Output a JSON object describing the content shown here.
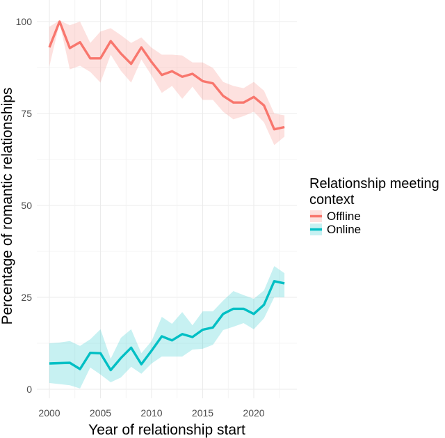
{
  "chart_data": {
    "type": "line",
    "title": "",
    "xlabel": "Year of relationship start",
    "ylabel": "Percentage of romantic relationships",
    "xlim": [
      1999,
      2024
    ],
    "ylim": [
      -1.5,
      105
    ],
    "x_ticks": [
      2000,
      2005,
      2010,
      2015,
      2020
    ],
    "x_tick_labels": [
      "2000",
      "2005",
      "2010",
      "2015",
      "2020"
    ],
    "y_ticks": [
      0,
      25,
      50,
      75,
      100
    ],
    "y_tick_labels": [
      "0",
      "25",
      "50",
      "75",
      "100"
    ],
    "grid": true,
    "legend": {
      "title": "Relationship meeting context",
      "title_lines": [
        "Relationship meeting",
        "context"
      ],
      "placement": "right"
    },
    "x": [
      2000,
      2001,
      2002,
      2003,
      2004,
      2005,
      2006,
      2007,
      2008,
      2009,
      2010,
      2011,
      2012,
      2013,
      2014,
      2015,
      2016,
      2017,
      2018,
      2019,
      2020,
      2021,
      2022,
      2023
    ],
    "series": [
      {
        "name": "Offline",
        "color": "#F8766D",
        "ribbon_color": "#F8766D",
        "values": [
          93.0,
          100.0,
          92.8,
          94.4,
          90.0,
          90.0,
          94.7,
          91.3,
          88.5,
          93.0,
          89.0,
          85.5,
          86.5,
          85.0,
          85.8,
          83.8,
          83.2,
          79.8,
          78.0,
          78.0,
          79.5,
          77.2,
          70.7,
          71.3
        ],
        "upper": [
          98.6,
          100.3,
          99.0,
          100.0,
          94.2,
          97.3,
          98.2,
          96.3,
          94.2,
          95.7,
          92.9,
          91.0,
          91.0,
          90.8,
          88.9,
          88.9,
          87.4,
          83.6,
          82.5,
          81.9,
          83.6,
          81.2,
          75.0,
          74.5
        ],
        "lower": [
          87.8,
          99.6,
          87.0,
          88.0,
          86.3,
          83.4,
          91.0,
          86.6,
          83.4,
          89.7,
          85.3,
          80.6,
          82.5,
          79.0,
          82.3,
          78.7,
          78.7,
          75.5,
          73.4,
          74.3,
          75.5,
          72.6,
          66.4,
          68.7
        ]
      },
      {
        "name": "Online",
        "color": "#00BFC4",
        "ribbon_color": "#00BFC4",
        "values": [
          7.0,
          7.1,
          7.2,
          5.5,
          9.9,
          9.8,
          5.2,
          8.5,
          11.3,
          6.8,
          10.5,
          14.4,
          13.3,
          15.0,
          14.2,
          16.2,
          16.8,
          20.5,
          21.9,
          21.9,
          20.5,
          23.0,
          29.4,
          28.8
        ],
        "upper": [
          12.5,
          12.7,
          13.1,
          11.8,
          13.6,
          16.3,
          8.3,
          14.0,
          16.3,
          9.8,
          13.1,
          19.7,
          17.8,
          21.0,
          17.4,
          21.2,
          21.2,
          24.1,
          26.7,
          25.6,
          24.6,
          26.9,
          33.5,
          31.6
        ],
        "lower": [
          1.7,
          1.4,
          1.1,
          0.2,
          5.9,
          4.0,
          1.9,
          3.2,
          6.1,
          4.2,
          7.0,
          8.9,
          8.9,
          8.9,
          10.8,
          11.0,
          12.1,
          16.1,
          17.0,
          18.0,
          16.3,
          19.3,
          25.0,
          25.0
        ]
      }
    ]
  }
}
